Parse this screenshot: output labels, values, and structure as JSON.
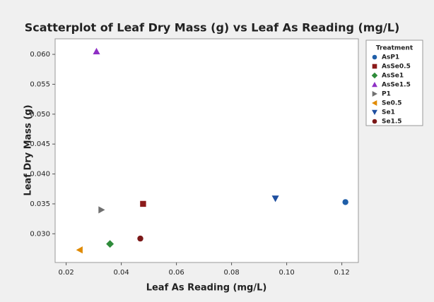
{
  "chart_data": {
    "type": "scatter",
    "title": "Scatterplot of Leaf Dry Mass (g) vs Leaf As Reading (mg/L)",
    "x_label": "Leaf As Reading (mg/L)",
    "y_label": "Leaf Dry Mass (g)",
    "legend_title": "Treatment",
    "legend_position": "right",
    "xlim": [
      0.016,
      0.126
    ],
    "ylim": [
      0.0252,
      0.0626
    ],
    "xticks": [
      0.02,
      0.04,
      0.06,
      0.08,
      {
        "value": 0.1,
        "label": "0.10"
      },
      0.12
    ],
    "yticks": [
      {
        "value": 0.03,
        "label": "0.030"
      },
      0.035,
      {
        "value": 0.04,
        "label": "0.040"
      },
      0.045,
      {
        "value": 0.05,
        "label": "0.050"
      },
      0.055,
      {
        "value": 0.06,
        "label": "0.060"
      }
    ],
    "series": [
      {
        "name": "AsP1",
        "color": "#1f5ea8",
        "marker": "circle",
        "x": [
          0.1213
        ],
        "values": [
          0.0353
        ]
      },
      {
        "name": "AsSe0.5",
        "color": "#8b1a1a",
        "marker": "square",
        "x": [
          0.0479
        ],
        "values": [
          0.035
        ]
      },
      {
        "name": "AsSe1",
        "color": "#2e8b3a",
        "marker": "diamond",
        "x": [
          0.0359
        ],
        "values": [
          0.0283
        ]
      },
      {
        "name": "AsSe1.5",
        "color": "#8e2fc4",
        "marker": "triangle-up",
        "x": [
          0.031
        ],
        "values": [
          0.0605
        ]
      },
      {
        "name": "P1",
        "color": "#707070",
        "marker": "triangle-right",
        "x": [
          0.0328
        ],
        "values": [
          0.034
        ]
      },
      {
        "name": "Se0.5",
        "color": "#e08a00",
        "marker": "triangle-left",
        "x": [
          0.0249
        ],
        "values": [
          0.0273
        ]
      },
      {
        "name": "Se1",
        "color": "#1f4fa0",
        "marker": "triangle-down",
        "x": [
          0.0959
        ],
        "values": [
          0.0359
        ]
      },
      {
        "name": "Se1.5",
        "color": "#7b1818",
        "marker": "circle",
        "x": [
          0.0469
        ],
        "values": [
          0.0292
        ]
      }
    ]
  }
}
